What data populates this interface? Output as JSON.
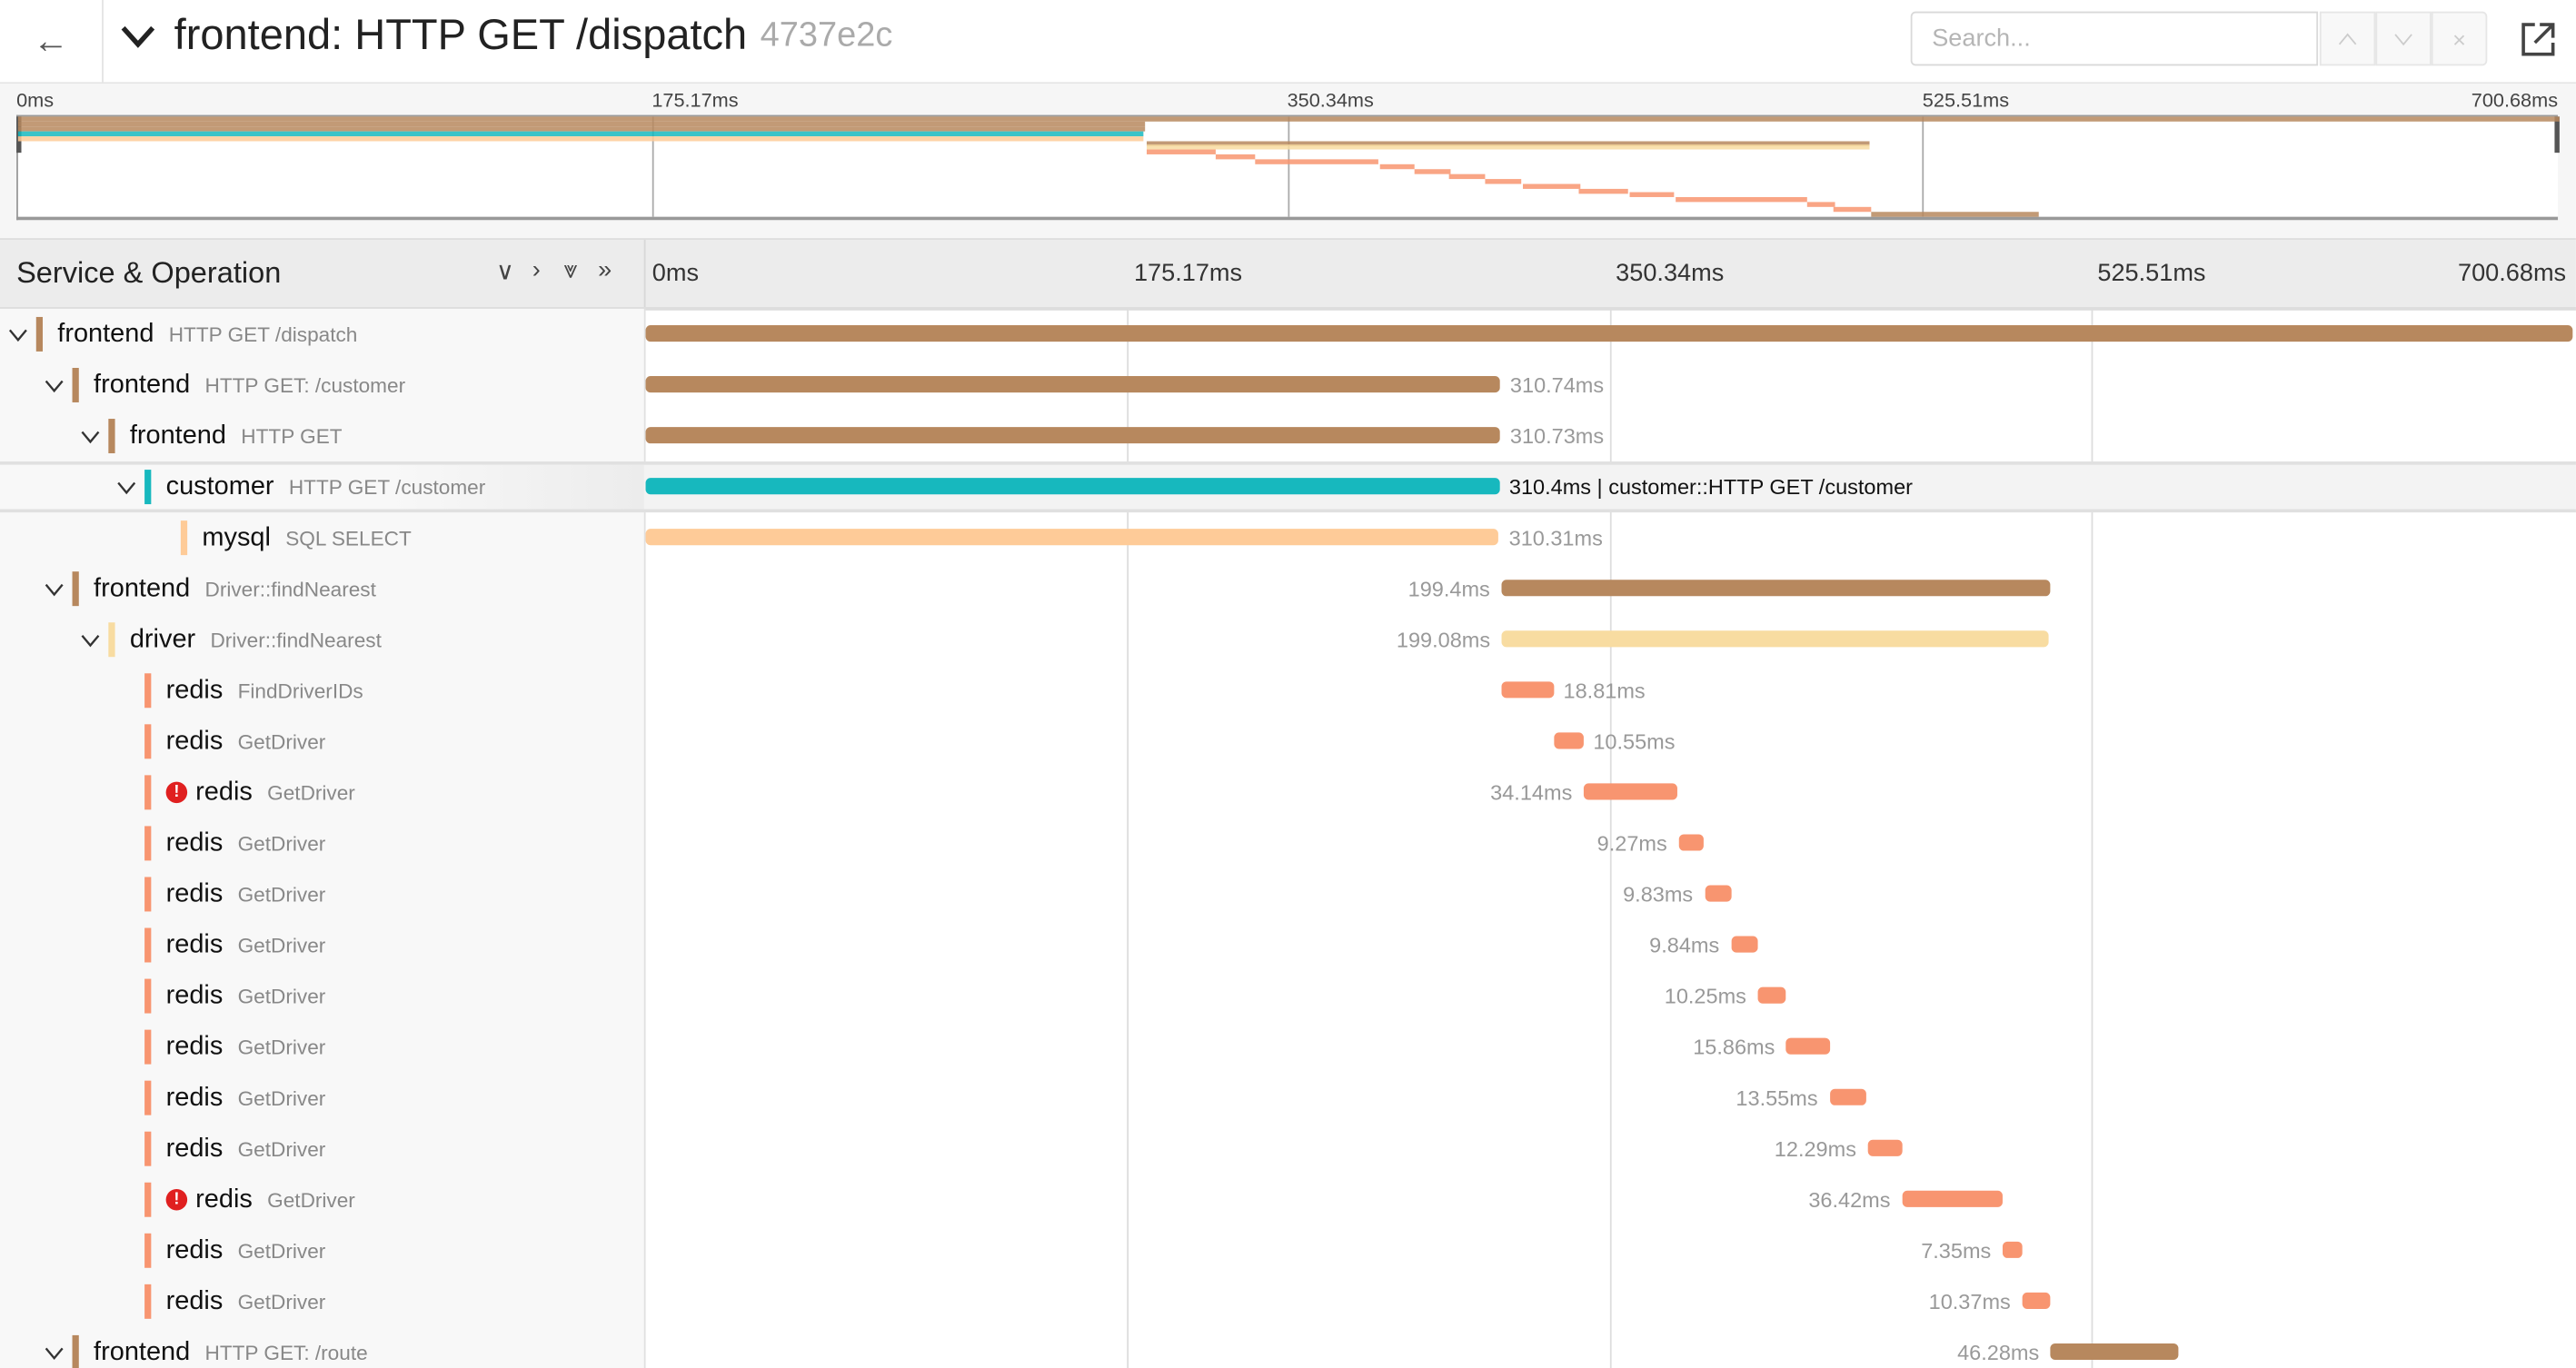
{
  "header": {
    "back_icon": "arrow-left-icon",
    "collapse_icon": "chevron-down-icon",
    "title": "frontend: HTTP GET /dispatch",
    "trace_id": "4737e2c",
    "search_placeholder": "Search...",
    "prev_label": "^",
    "next_label": "v",
    "clear_label": "×",
    "external_icon": "external-link-icon"
  },
  "timeline": {
    "ticks": [
      "0ms",
      "175.17ms",
      "350.34ms",
      "525.51ms",
      "700.68ms"
    ],
    "tick_values_ms": [
      0,
      175.17,
      350.34,
      525.51,
      700.68
    ],
    "total_ms": 700.68
  },
  "columns": {
    "service_operation": "Service & Operation",
    "controls": [
      "∨",
      "›",
      "⩔",
      "»"
    ]
  },
  "colors": {
    "frontend": "#b7885e",
    "customer": "#17b8be",
    "mysql": "#fecb98",
    "driver": "#f8dca1",
    "redis": "#f89570",
    "error": "#e02020"
  },
  "spans": [
    {
      "service": "frontend",
      "operation": "HTTP GET /dispatch",
      "depth": 0,
      "expanded": true,
      "start_ms": 0,
      "duration_ms": 700.68,
      "duration": ""
    },
    {
      "service": "frontend",
      "operation": "HTTP GET: /customer",
      "depth": 1,
      "expanded": true,
      "start_ms": 0,
      "duration_ms": 310.74,
      "duration": "310.74ms"
    },
    {
      "service": "frontend",
      "operation": "HTTP GET",
      "depth": 2,
      "expanded": true,
      "start_ms": 0,
      "duration_ms": 310.73,
      "duration": "310.73ms"
    },
    {
      "service": "customer",
      "operation": "HTTP GET /customer",
      "depth": 3,
      "expanded": true,
      "start_ms": 0,
      "duration_ms": 310.4,
      "duration": "310.4ms | customer::HTTP GET /customer",
      "selected": true
    },
    {
      "service": "mysql",
      "operation": "SQL SELECT",
      "depth": 4,
      "start_ms": 0,
      "duration_ms": 310.31,
      "duration": "310.31ms"
    },
    {
      "service": "frontend",
      "operation": "Driver::findNearest",
      "depth": 1,
      "expanded": true,
      "start_ms": 311.2,
      "duration_ms": 199.4,
      "duration": "199.4ms"
    },
    {
      "service": "driver",
      "operation": "Driver::findNearest",
      "depth": 2,
      "expanded": true,
      "start_ms": 311.3,
      "duration_ms": 199.08,
      "duration": "199.08ms"
    },
    {
      "service": "redis",
      "operation": "FindDriverIDs",
      "depth": 3,
      "start_ms": 311.3,
      "duration_ms": 18.81,
      "duration": "18.81ms"
    },
    {
      "service": "redis",
      "operation": "GetDriver",
      "depth": 3,
      "start_ms": 330.4,
      "duration_ms": 10.55,
      "duration": "10.55ms"
    },
    {
      "service": "redis",
      "operation": "GetDriver",
      "depth": 3,
      "start_ms": 341.1,
      "duration_ms": 34.14,
      "duration": "34.14ms",
      "error": true
    },
    {
      "service": "redis",
      "operation": "GetDriver",
      "depth": 3,
      "start_ms": 375.6,
      "duration_ms": 9.27,
      "duration": "9.27ms"
    },
    {
      "service": "redis",
      "operation": "GetDriver",
      "depth": 3,
      "start_ms": 385.0,
      "duration_ms": 9.83,
      "duration": "9.83ms"
    },
    {
      "service": "redis",
      "operation": "GetDriver",
      "depth": 3,
      "start_ms": 394.6,
      "duration_ms": 9.84,
      "duration": "9.84ms"
    },
    {
      "service": "redis",
      "operation": "GetDriver",
      "depth": 3,
      "start_ms": 404.4,
      "duration_ms": 10.25,
      "duration": "10.25ms"
    },
    {
      "service": "redis",
      "operation": "GetDriver",
      "depth": 3,
      "start_ms": 414.8,
      "duration_ms": 15.86,
      "duration": "15.86ms"
    },
    {
      "service": "redis",
      "operation": "GetDriver",
      "depth": 3,
      "start_ms": 430.4,
      "duration_ms": 13.55,
      "duration": "13.55ms"
    },
    {
      "service": "redis",
      "operation": "GetDriver",
      "depth": 3,
      "start_ms": 444.4,
      "duration_ms": 12.29,
      "duration": "12.29ms"
    },
    {
      "service": "redis",
      "operation": "GetDriver",
      "depth": 3,
      "start_ms": 456.8,
      "duration_ms": 36.42,
      "duration": "36.42ms",
      "error": true
    },
    {
      "service": "redis",
      "operation": "GetDriver",
      "depth": 3,
      "start_ms": 493.4,
      "duration_ms": 7.35,
      "duration": "7.35ms"
    },
    {
      "service": "redis",
      "operation": "GetDriver",
      "depth": 3,
      "start_ms": 500.5,
      "duration_ms": 10.37,
      "duration": "10.37ms"
    },
    {
      "service": "frontend",
      "operation": "HTTP GET: /route",
      "depth": 1,
      "expanded": true,
      "start_ms": 510.9,
      "duration_ms": 46.28,
      "duration": "46.28ms"
    }
  ]
}
